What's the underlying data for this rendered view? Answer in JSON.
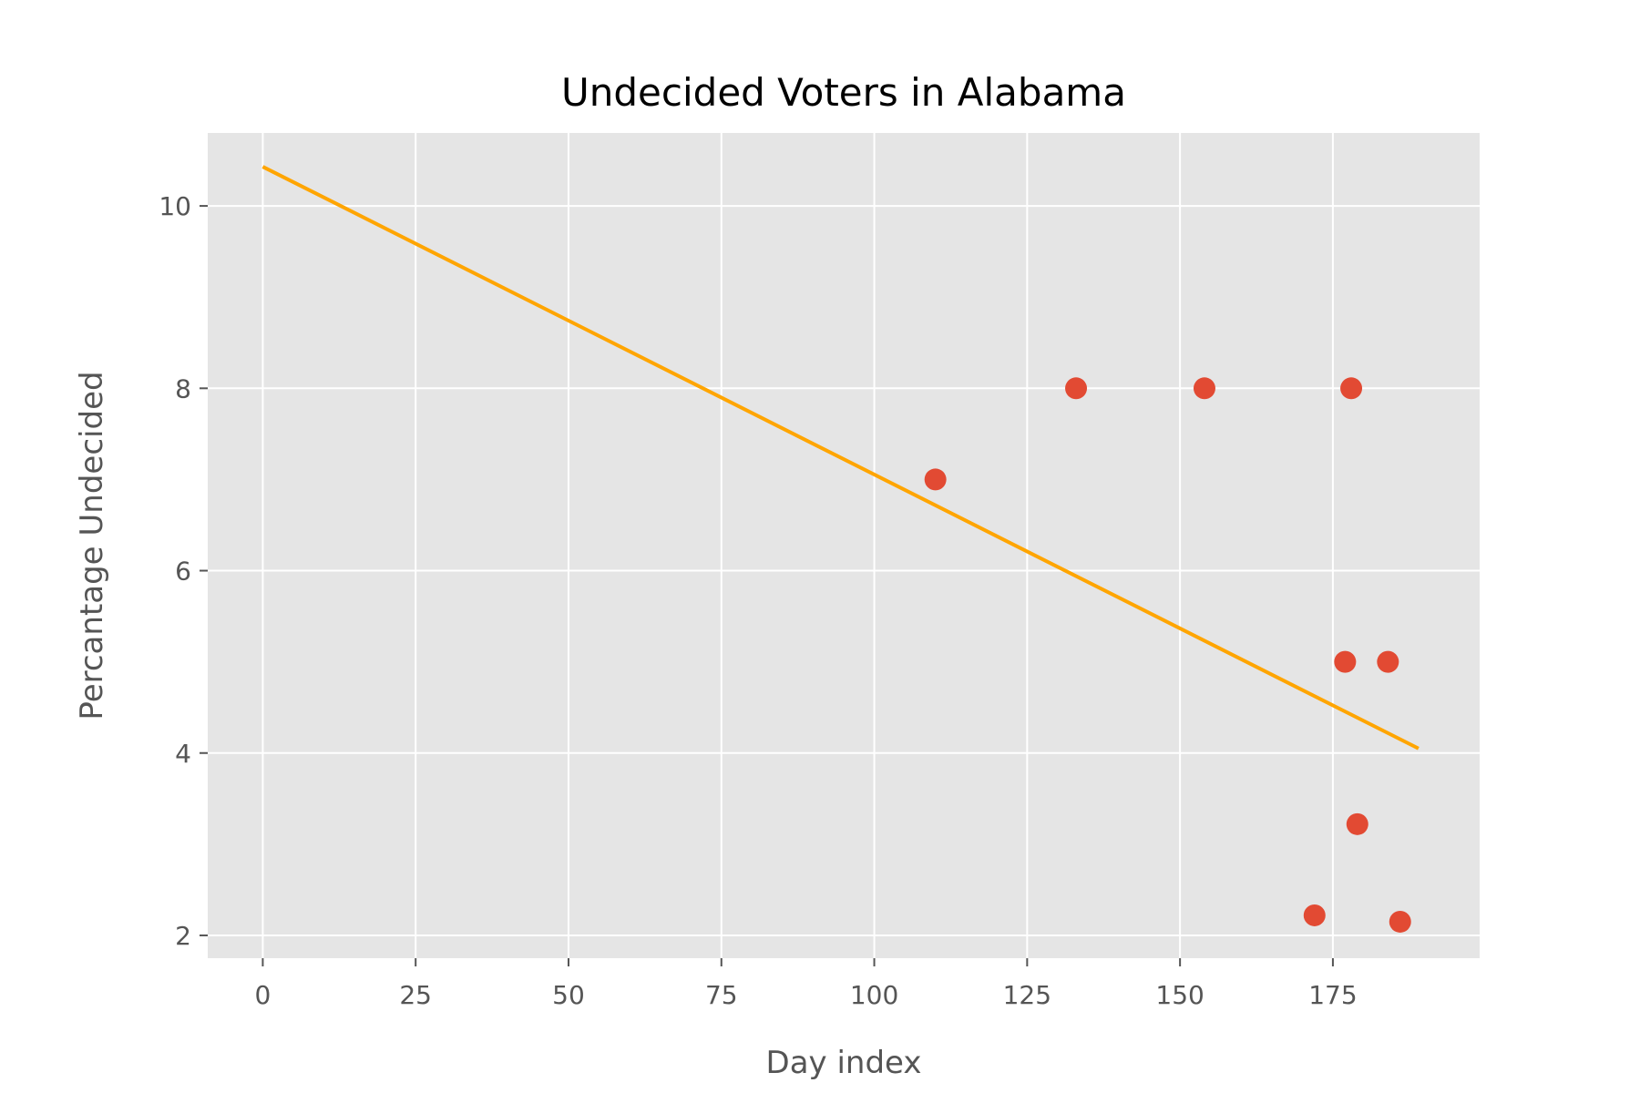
{
  "chart_data": {
    "type": "scatter",
    "title": "Undecided Voters in Alabama",
    "xlabel": "Day index",
    "ylabel": "Percantage Undecided",
    "xlim": [
      -9,
      199
    ],
    "ylim": [
      1.75,
      10.8
    ],
    "xticks": [
      0,
      25,
      50,
      75,
      100,
      125,
      150,
      175
    ],
    "yticks": [
      2,
      4,
      6,
      8,
      10
    ],
    "grid": true,
    "background_color": "#e5e5e5",
    "grid_color": "#ffffff",
    "points": {
      "color": "#e24a33",
      "x": [
        110,
        133,
        154,
        178,
        177,
        184,
        179,
        172,
        186
      ],
      "y": [
        7.0,
        8.0,
        8.0,
        8.0,
        5.0,
        5.0,
        3.22,
        2.22,
        2.15
      ]
    },
    "trend_line": {
      "color": "#ffa500",
      "x": [
        0,
        189
      ],
      "y": [
        10.43,
        4.05
      ]
    }
  }
}
